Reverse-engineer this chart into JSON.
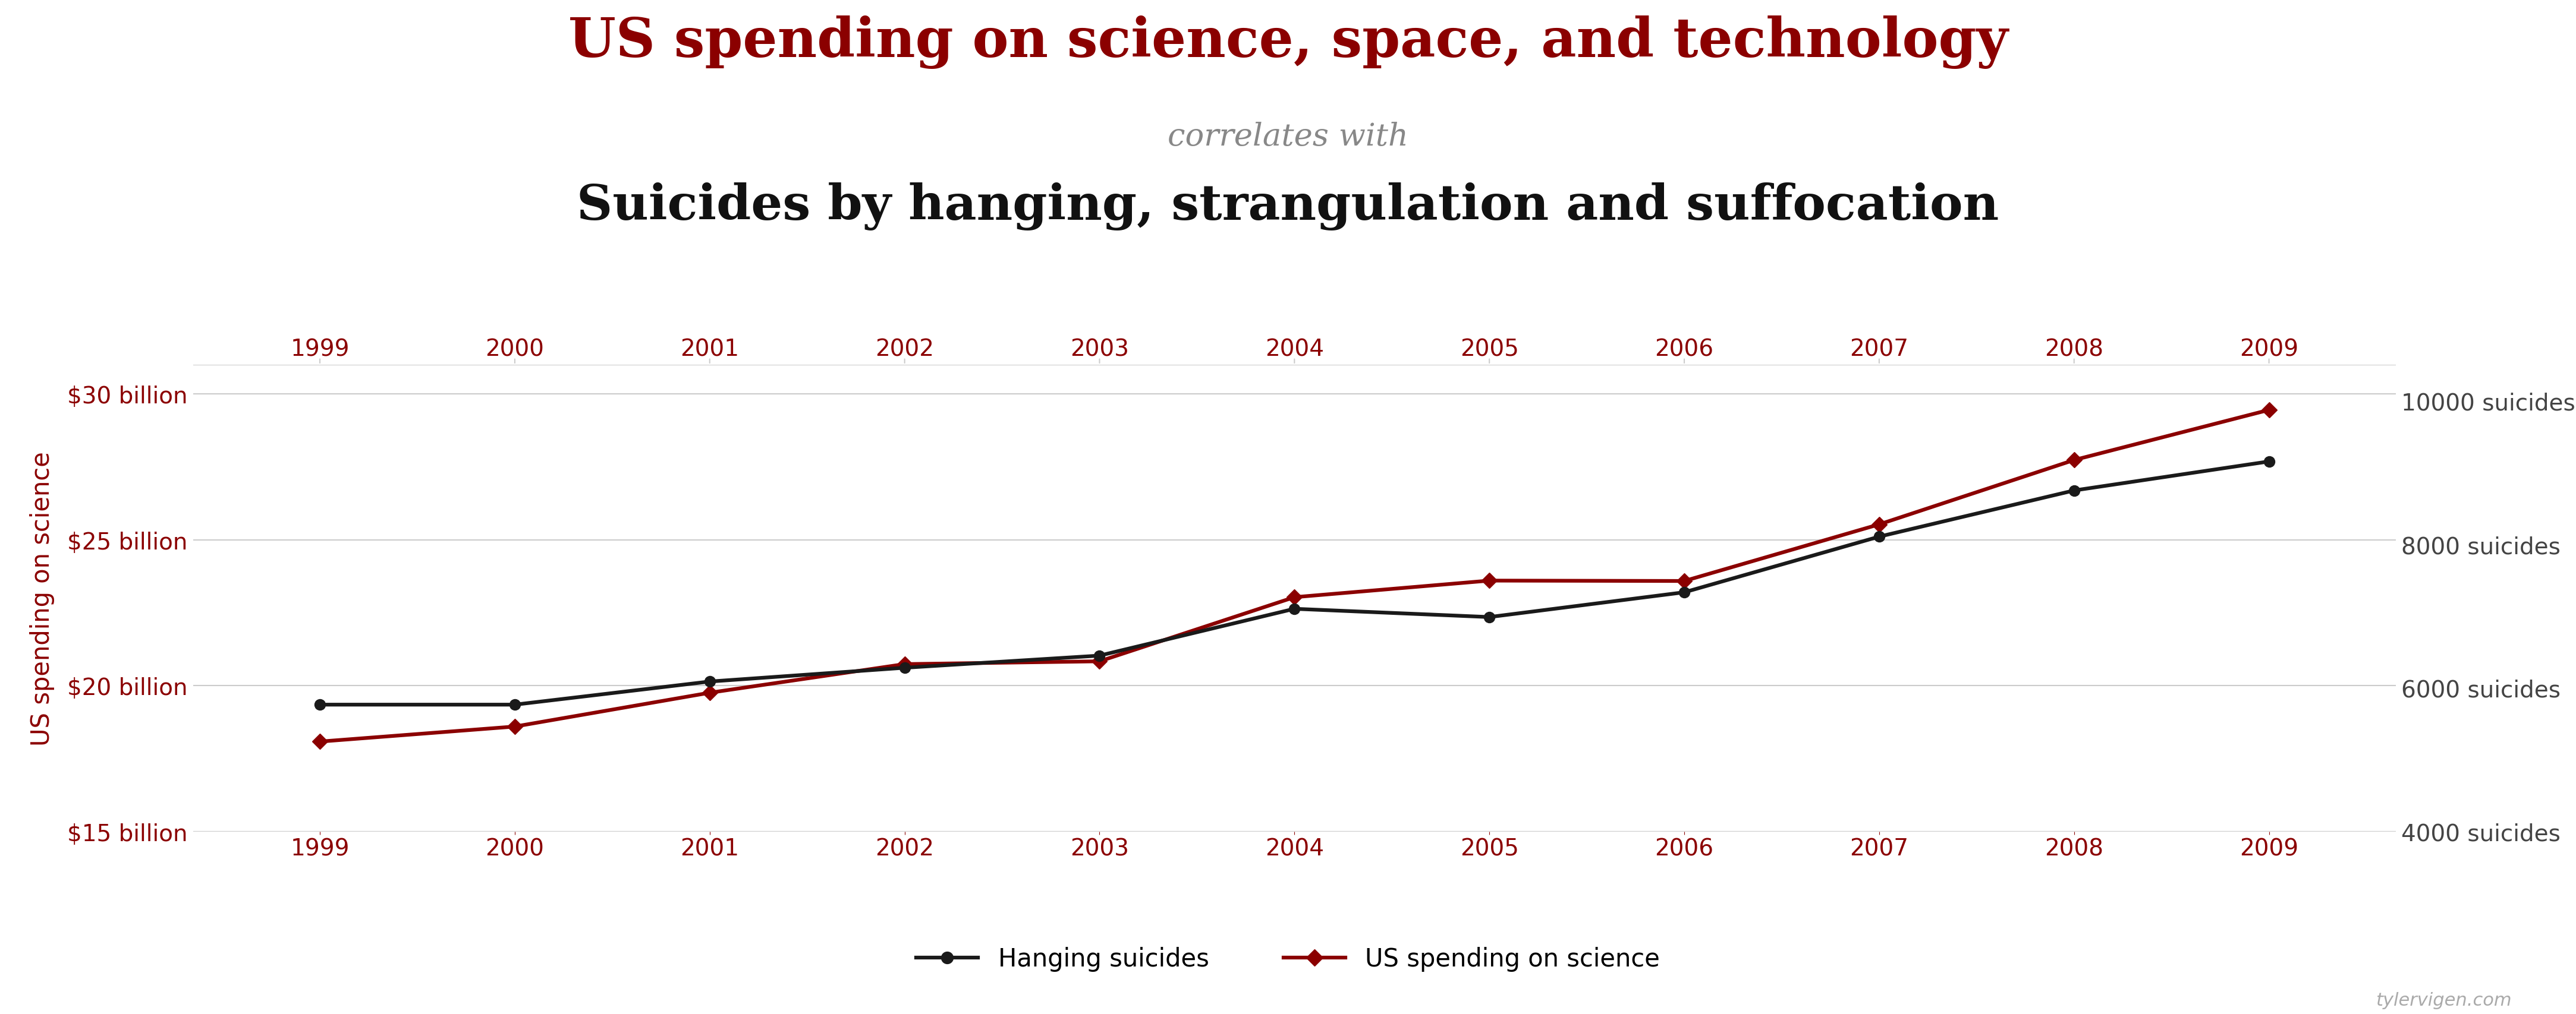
{
  "years": [
    1999,
    2000,
    2001,
    2002,
    2003,
    2004,
    2005,
    2006,
    2007,
    2008,
    2009
  ],
  "hanging_suicides": [
    5765,
    5765,
    6087,
    6279,
    6448,
    7100,
    6985,
    7330,
    8105,
    8748,
    9152
  ],
  "science_spending_billions": [
    18.079,
    18.594,
    19.753,
    20.734,
    20.831,
    23.029,
    23.597,
    23.584,
    25.525,
    27.731,
    29.449
  ],
  "title_line1": "US spending on science, space, and technology",
  "title_line2": "correlates with",
  "title_line3": "Suicides by hanging, strangulation and suffocation",
  "ylabel_left": "US spending on science",
  "ylabel_right": "Hanging suicides",
  "legend_black": "Hanging suicides",
  "legend_red": "US spending on science",
  "ylim_science": [
    15,
    31
  ],
  "ylim_suicides": [
    4000,
    10500
  ],
  "yticks_science": [
    15,
    20,
    25,
    30
  ],
  "yticks_science_labels": [
    "$15 billion",
    "$20 billion",
    "$25 billion",
    "$30 billion"
  ],
  "yticks_suicides": [
    4000,
    6000,
    8000,
    10000
  ],
  "yticks_suicides_labels": [
    "4000 suicides",
    "6000 suicides",
    "8000 suicides",
    "10000 suicides"
  ],
  "color_red": "#8B0000",
  "color_black": "#1a1a1a",
  "color_gridline": "#cccccc",
  "color_title_red": "#8B0000",
  "color_title_black": "#111111",
  "color_correlates": "#888888",
  "background_color": "#ffffff",
  "watermark": "tylervigen.com"
}
